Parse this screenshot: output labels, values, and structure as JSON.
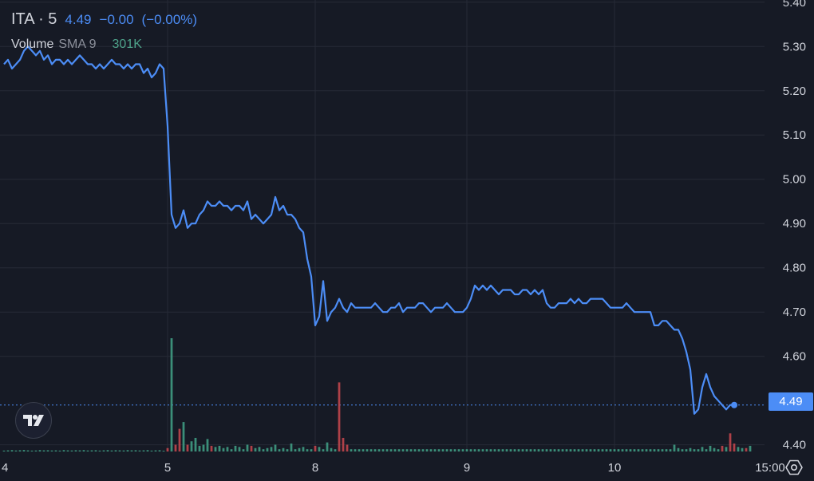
{
  "legend": {
    "symbol": "ITA · 5",
    "last": "4.49",
    "change": "−0.00",
    "change_pct": "(−0.00%)",
    "volume_label": "Volume",
    "volume_sma": "SMA 9",
    "volume_value": "301K"
  },
  "price_badge": "4.49",
  "colors": {
    "background": "#161a25",
    "line": "#4c8df6",
    "grid": "#262a36",
    "text": "#d1d4dc",
    "vol_up": "#3f9b83",
    "vol_down": "#c0464c"
  },
  "icons": {
    "logo": "tradingview-logo-icon",
    "settings": "gear-icon"
  },
  "chart_data": {
    "type": "line",
    "series": [
      {
        "name": "",
        "values": [
          5.26,
          5.27,
          5.25,
          5.26,
          5.27,
          5.29,
          5.3,
          5.29,
          5.28,
          5.29,
          5.27,
          5.28,
          5.26,
          5.27,
          5.27,
          5.26,
          5.27,
          5.26,
          5.27,
          5.28,
          5.27,
          5.26,
          5.26,
          5.25,
          5.26,
          5.25,
          5.26,
          5.27,
          5.26,
          5.26,
          5.25,
          5.26,
          5.25,
          5.26,
          5.26,
          5.24,
          5.25,
          5.23,
          5.24,
          5.26,
          5.25,
          5.12,
          4.92,
          4.89,
          4.9,
          4.93,
          4.89,
          4.9,
          4.9,
          4.92,
          4.93,
          4.95,
          4.94,
          4.94,
          4.95,
          4.94,
          4.94,
          4.93,
          4.94,
          4.94,
          4.93,
          4.95,
          4.91,
          4.92,
          4.91,
          4.9,
          4.91,
          4.92,
          4.96,
          4.93,
          4.94,
          4.92,
          4.92,
          4.91,
          4.89,
          4.88,
          4.82,
          4.78,
          4.67,
          4.69,
          4.77,
          4.68,
          4.7,
          4.71,
          4.73,
          4.71,
          4.7,
          4.72,
          4.71,
          4.71,
          4.71,
          4.71,
          4.71,
          4.72,
          4.71,
          4.7,
          4.7,
          4.71,
          4.71,
          4.72,
          4.7,
          4.71,
          4.71,
          4.71,
          4.72,
          4.72,
          4.71,
          4.7,
          4.71,
          4.71,
          4.71,
          4.72,
          4.71,
          4.7,
          4.7,
          4.7,
          4.71,
          4.73,
          4.76,
          4.75,
          4.76,
          4.75,
          4.76,
          4.75,
          4.74,
          4.75,
          4.75,
          4.75,
          4.74,
          4.74,
          4.75,
          4.75,
          4.74,
          4.75,
          4.74,
          4.75,
          4.72,
          4.71,
          4.71,
          4.72,
          4.72,
          4.72,
          4.73,
          4.72,
          4.73,
          4.72,
          4.72,
          4.73,
          4.73,
          4.73,
          4.73,
          4.72,
          4.71,
          4.71,
          4.71,
          4.71,
          4.72,
          4.71,
          4.7,
          4.7,
          4.7,
          4.7,
          4.7,
          4.67,
          4.67,
          4.68,
          4.68,
          4.67,
          4.66,
          4.66,
          4.64,
          4.61,
          4.57,
          4.47,
          4.48,
          4.53,
          4.56,
          4.53,
          4.51,
          4.5,
          4.49,
          4.48,
          4.49,
          4.49
        ]
      }
    ],
    "volume_up": [
      0.008,
      0.01,
      0.012,
      0.009,
      0.011,
      0.013,
      0.01,
      0.008,
      0.009,
      0.012,
      0.01,
      0.011,
      0.009,
      0.01,
      0.008,
      0.012,
      0.01,
      0.009,
      0.011,
      0.01,
      0.012,
      0.009,
      0.01,
      0.011,
      0.008,
      0.01,
      0.012,
      0.009,
      0.011,
      0.01,
      0.009,
      0.012,
      0.01,
      0.011,
      0.009,
      0.01,
      0.012,
      0.008,
      0.01,
      0.011,
      0.0,
      0.0,
      1.0,
      0.0,
      0.0,
      0.26,
      0.0,
      0.09,
      0.12,
      0.05,
      0.06,
      0.11,
      0.0,
      0.04,
      0.05,
      0.03,
      0.04,
      0.02,
      0.05,
      0.04,
      0.02,
      0.06,
      0.0,
      0.03,
      0.04,
      0.02,
      0.03,
      0.04,
      0.06,
      0.02,
      0.03,
      0.02,
      0.07,
      0.02,
      0.03,
      0.04,
      0.02,
      0.02,
      0.03,
      0.04,
      0.02,
      0.08,
      0.03,
      0.02,
      0.02,
      0.03,
      0.02,
      0.02,
      0.02,
      0.02,
      0.02,
      0.02,
      0.02,
      0.02,
      0.02,
      0.02,
      0.02,
      0.02,
      0.02,
      0.02,
      0.02,
      0.02,
      0.02,
      0.02,
      0.02,
      0.02,
      0.02,
      0.02,
      0.02,
      0.02,
      0.02,
      0.02,
      0.02,
      0.02,
      0.02,
      0.02,
      0.02,
      0.02,
      0.02,
      0.02,
      0.02,
      0.02,
      0.02,
      0.02,
      0.02,
      0.02,
      0.02,
      0.02,
      0.02,
      0.02,
      0.02,
      0.02,
      0.02,
      0.02,
      0.02,
      0.02,
      0.02,
      0.02,
      0.02,
      0.02,
      0.02,
      0.02,
      0.02,
      0.02,
      0.02,
      0.02,
      0.02,
      0.02,
      0.02,
      0.02,
      0.02,
      0.02,
      0.02,
      0.02,
      0.02,
      0.02,
      0.02,
      0.02,
      0.02,
      0.02,
      0.02,
      0.02,
      0.02,
      0.02,
      0.02,
      0.02,
      0.02,
      0.02,
      0.06,
      0.03,
      0.02,
      0.02,
      0.03,
      0.02,
      0.02,
      0.04,
      0.02,
      0.05,
      0.03,
      0.02,
      0.02,
      0.04,
      0.03,
      0.02,
      0.04,
      0.03,
      0.02,
      0.05
    ],
    "volume_down": [
      0,
      0,
      0,
      0,
      0,
      0,
      0,
      0,
      0,
      0,
      0,
      0,
      0,
      0,
      0,
      0,
      0,
      0,
      0,
      0,
      0,
      0,
      0,
      0,
      0,
      0,
      0,
      0,
      0,
      0,
      0,
      0,
      0,
      0,
      0,
      0,
      0,
      0,
      0,
      0,
      0,
      0.03,
      0.0,
      0.06,
      0.2,
      0.0,
      0.06,
      0,
      0,
      0,
      0,
      0,
      0.05,
      0,
      0,
      0,
      0,
      0,
      0,
      0,
      0,
      0,
      0.05,
      0,
      0,
      0,
      0,
      0,
      0,
      0,
      0,
      0,
      0,
      0,
      0,
      0,
      0,
      0,
      0.05,
      0.02,
      0,
      0,
      0,
      0,
      0.61,
      0.12,
      0.06,
      0,
      0,
      0,
      0,
      0,
      0,
      0,
      0,
      0,
      0,
      0,
      0,
      0,
      0,
      0,
      0,
      0,
      0,
      0,
      0,
      0,
      0,
      0,
      0,
      0,
      0,
      0,
      0,
      0,
      0,
      0,
      0,
      0,
      0,
      0,
      0,
      0,
      0,
      0,
      0,
      0,
      0,
      0,
      0,
      0,
      0,
      0,
      0,
      0,
      0,
      0,
      0,
      0,
      0,
      0,
      0,
      0,
      0,
      0,
      0,
      0,
      0,
      0,
      0,
      0,
      0,
      0,
      0,
      0,
      0,
      0,
      0,
      0,
      0,
      0,
      0,
      0,
      0,
      0,
      0,
      0,
      0,
      0,
      0,
      0,
      0,
      0,
      0.02,
      0,
      0,
      0.03,
      0,
      0.02,
      0.05,
      0.04,
      0.16,
      0.07,
      0.03,
      0.02,
      0.03,
      0.02,
      0.03,
      0.02,
      0.03,
      0.04,
      0.03,
      0
    ],
    "x_ticks": [
      {
        "label": "4",
        "index": 0
      },
      {
        "label": "5",
        "index": 41
      },
      {
        "label": "8",
        "index": 78
      },
      {
        "label": "9",
        "index": 116
      },
      {
        "label": "10",
        "index": 153
      },
      {
        "label": "15:00",
        "index": 192
      }
    ],
    "y_ticks": [
      "5.40",
      "5.30",
      "5.20",
      "5.10",
      "5.00",
      "4.90",
      "4.80",
      "4.70",
      "4.60",
      "4.40"
    ],
    "ylim": [
      4.385,
      5.405
    ],
    "last_price": 4.49
  }
}
